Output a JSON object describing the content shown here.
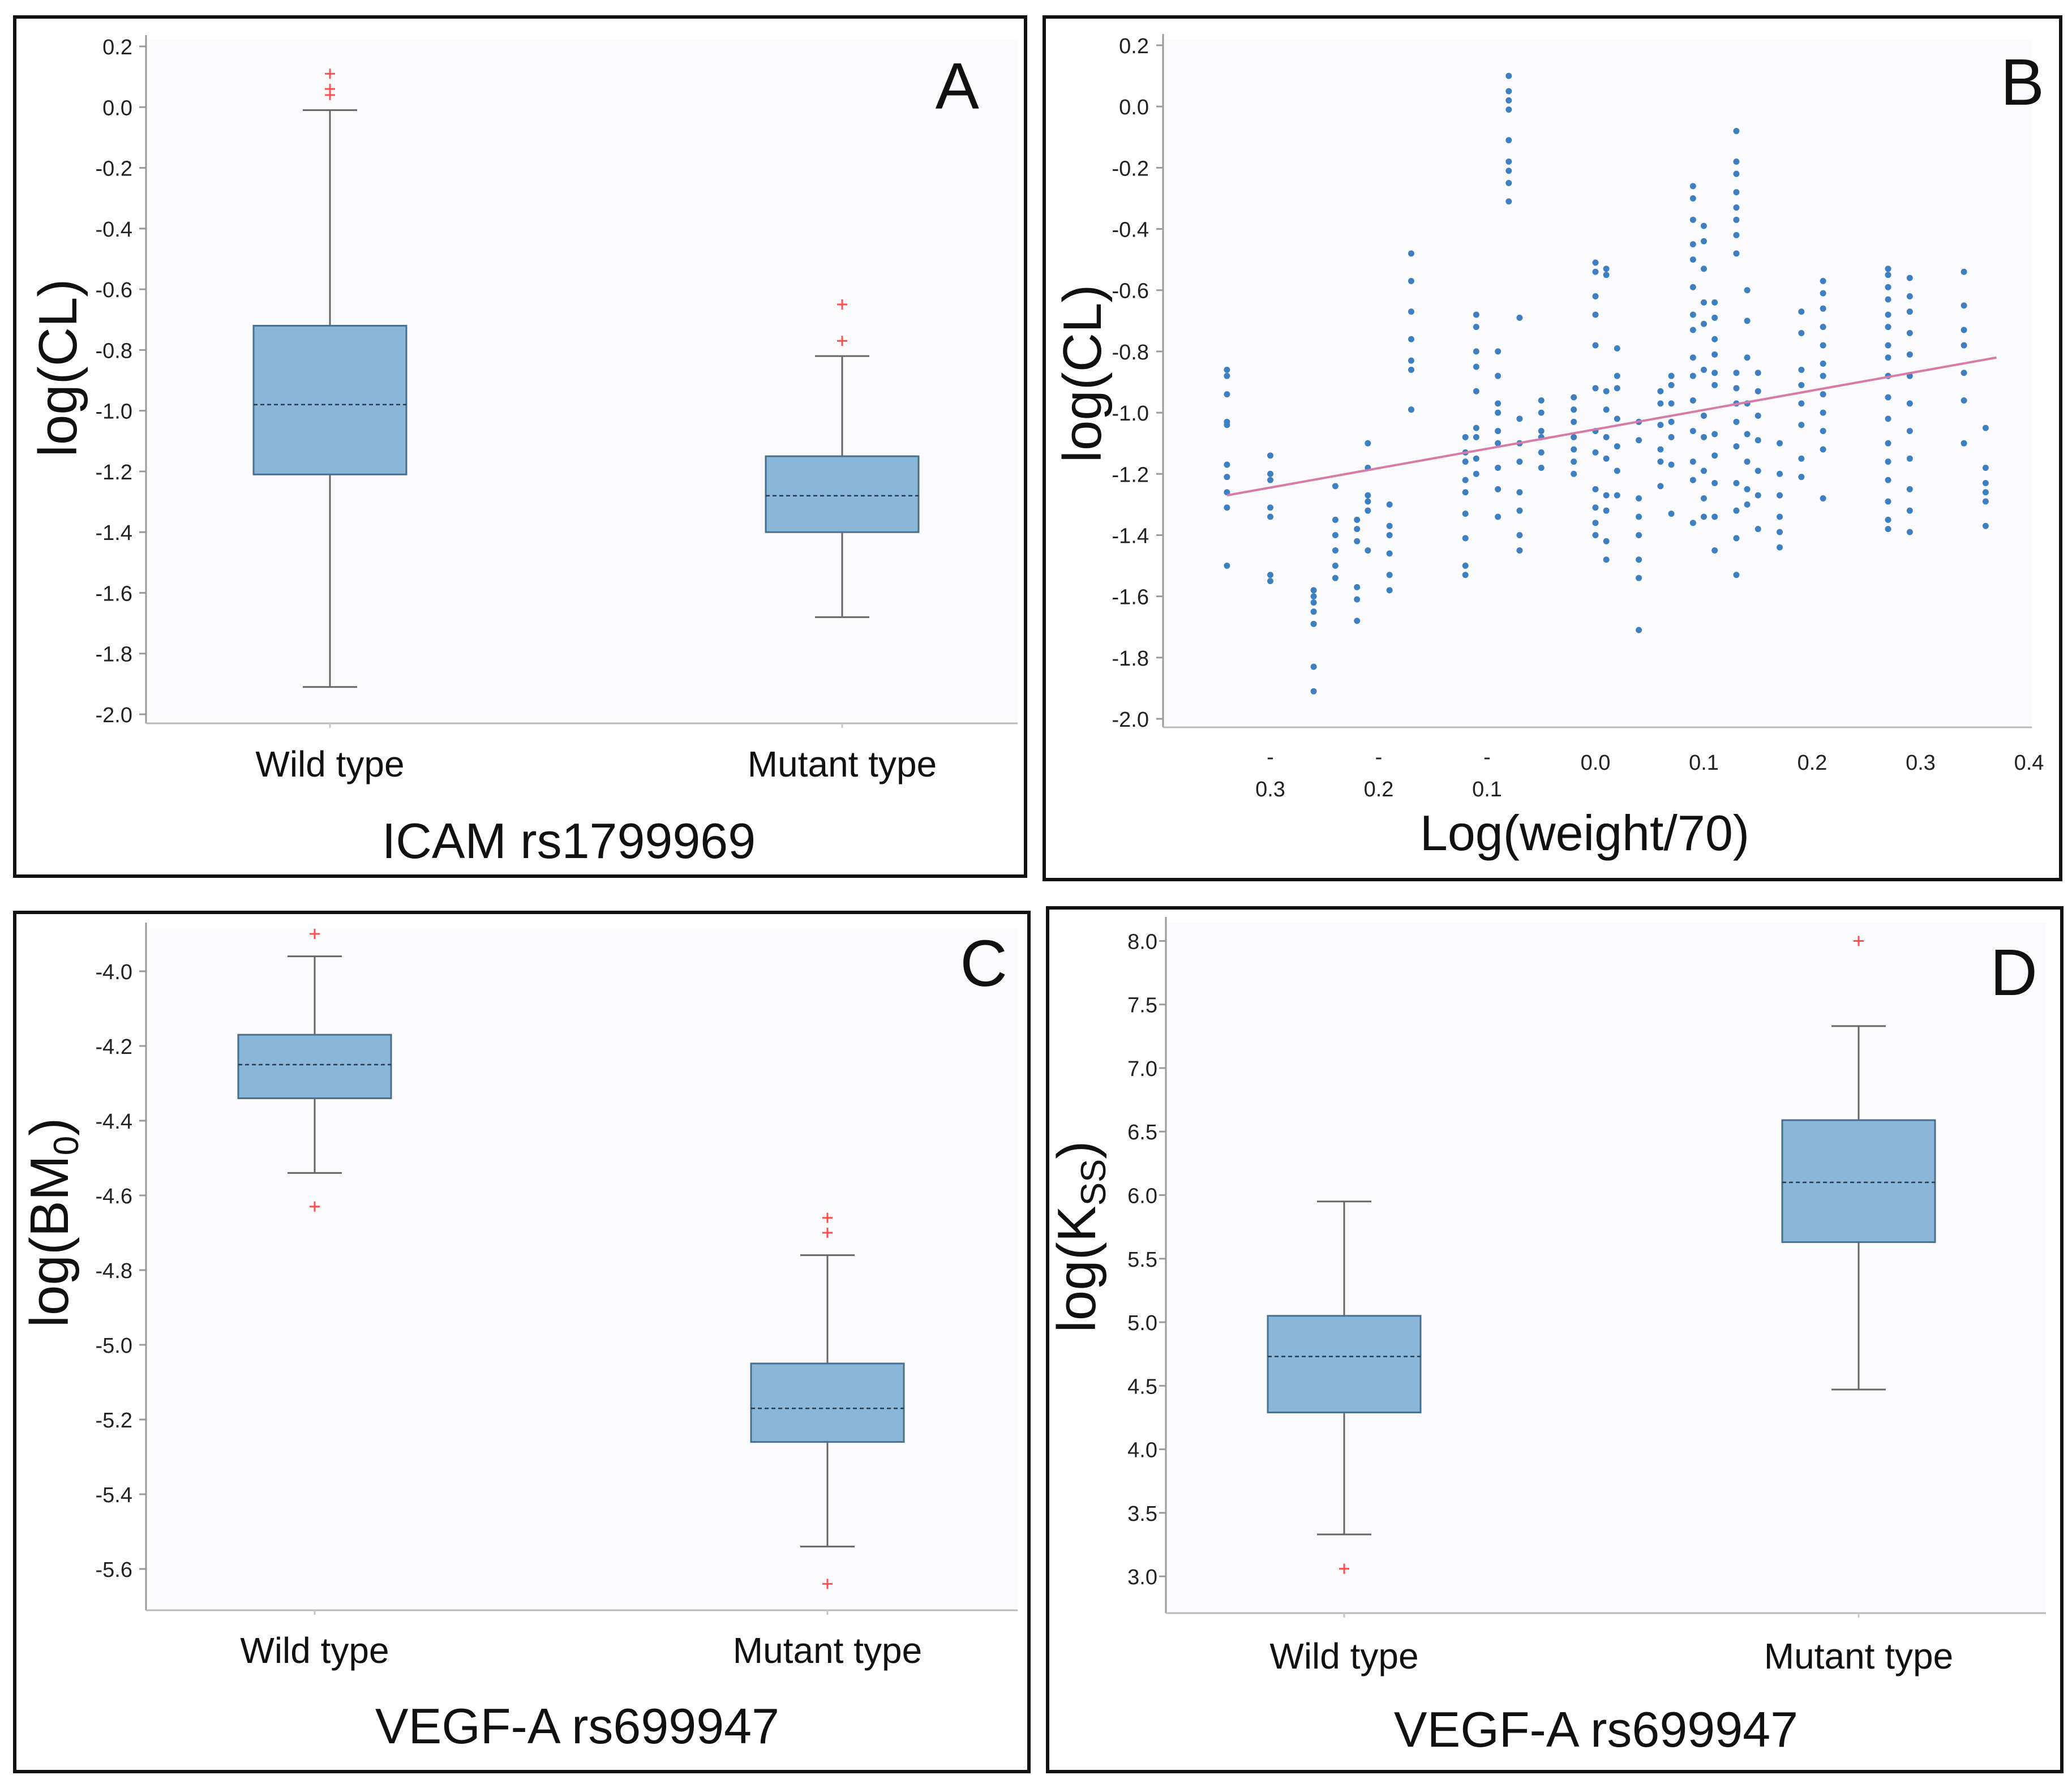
{
  "chart_data": [
    {
      "panel": "A",
      "type": "box",
      "letter": "A",
      "ylabel": "log(CL)",
      "xlabel": "ICAM rs1799969",
      "categories": [
        "Wild type",
        "Mutant type"
      ],
      "ylim": [
        -2.0,
        0.2
      ],
      "yticks": [
        "0.2",
        "0.0",
        "-0.2",
        "-0.4",
        "-0.6",
        "-0.8",
        "-1.0",
        "-1.2",
        "-1.4",
        "-1.6",
        "-1.8",
        "-2.0"
      ],
      "boxes": [
        {
          "category": "Wild type",
          "whisker_low": -1.91,
          "q1": -1.21,
          "median": -0.98,
          "q3": -0.72,
          "whisker_high": -0.01,
          "outliers": [
            0.11,
            0.06,
            0.04
          ]
        },
        {
          "category": "Mutant type",
          "whisker_low": -1.68,
          "q1": -1.4,
          "median": -1.28,
          "q3": -1.15,
          "whisker_high": -0.82,
          "outliers": [
            -0.65,
            -0.77
          ]
        }
      ],
      "colors": {
        "box_fill": "#8ab6d9",
        "box_stroke": "#4a6f8c",
        "whisker": "#666666",
        "outlier": "#ff5050",
        "frame": "#111111"
      }
    },
    {
      "panel": "B",
      "type": "scatter",
      "letter": "B",
      "ylabel": "log(CL)",
      "xlabel": "Log(weight/70)",
      "ylim": [
        -2.0,
        0.2
      ],
      "xlim": [
        -0.4,
        0.4
      ],
      "yticks": [
        "0.2",
        "0.0",
        "-0.2",
        "-0.4",
        "-0.6",
        "-0.8",
        "-1.0",
        "-1.2",
        "-1.4",
        "-1.6",
        "-1.8",
        "-2.0"
      ],
      "xticks": [
        {
          "v": -0.3,
          "dash": "-",
          "num": "0.3"
        },
        {
          "v": -0.2,
          "dash": "-",
          "num": "0.2"
        },
        {
          "v": -0.1,
          "dash": "-",
          "num": "0.1"
        },
        {
          "v": 0.0,
          "dash": "",
          "num": "0.0"
        },
        {
          "v": 0.1,
          "dash": "",
          "num": "0.1"
        },
        {
          "v": 0.2,
          "dash": "",
          "num": "0.2"
        },
        {
          "v": 0.3,
          "dash": "",
          "num": "0.3"
        },
        {
          "v": 0.4,
          "dash": "",
          "num": "0.4"
        }
      ],
      "regression": {
        "x": [
          -0.34,
          0.37
        ],
        "y": [
          -1.27,
          -0.82
        ]
      },
      "columns": [
        {
          "x": -0.34,
          "ys": [
            -0.86,
            -0.88,
            -0.94,
            -1.03,
            -1.04,
            -1.17,
            -1.21,
            -1.26,
            -1.31,
            -1.5
          ]
        },
        {
          "x": -0.3,
          "ys": [
            -1.14,
            -1.2,
            -1.22,
            -1.31,
            -1.34,
            -1.53,
            -1.55
          ]
        },
        {
          "x": -0.26,
          "ys": [
            -1.58,
            -1.6,
            -1.62,
            -1.65,
            -1.69,
            -1.83,
            -1.91
          ]
        },
        {
          "x": -0.24,
          "ys": [
            -1.24,
            -1.35,
            -1.4,
            -1.45,
            -1.5,
            -1.54
          ]
        },
        {
          "x": -0.22,
          "ys": [
            -1.35,
            -1.38,
            -1.42,
            -1.57,
            -1.61,
            -1.68
          ]
        },
        {
          "x": -0.21,
          "ys": [
            -1.1,
            -1.18,
            -1.27,
            -1.29,
            -1.32,
            -1.45
          ]
        },
        {
          "x": -0.19,
          "ys": [
            -1.3,
            -1.37,
            -1.4,
            -1.46,
            -1.53,
            -1.58
          ]
        },
        {
          "x": -0.17,
          "ys": [
            -0.48,
            -0.57,
            -0.67,
            -0.76,
            -0.83,
            -0.86,
            -0.99
          ]
        },
        {
          "x": -0.12,
          "ys": [
            -1.08,
            -1.13,
            -1.16,
            -1.22,
            -1.26,
            -1.33,
            -1.41,
            -1.5,
            -1.53
          ]
        },
        {
          "x": -0.11,
          "ys": [
            -0.68,
            -0.72,
            -0.8,
            -0.85,
            -0.93,
            -1.05,
            -1.08,
            -1.15,
            -1.2
          ]
        },
        {
          "x": -0.09,
          "ys": [
            -0.8,
            -0.88,
            -0.97,
            -1.0,
            -1.06,
            -1.1,
            -1.18,
            -1.25,
            -1.34
          ]
        },
        {
          "x": -0.08,
          "ys": [
            0.1,
            0.05,
            0.02,
            -0.01,
            -0.11,
            -0.18,
            -0.21,
            -0.25,
            -0.31
          ]
        },
        {
          "x": -0.07,
          "ys": [
            -0.69,
            -1.02,
            -1.1,
            -1.16,
            -1.26,
            -1.32,
            -1.4,
            -1.45
          ]
        },
        {
          "x": -0.05,
          "ys": [
            -0.96,
            -1.0,
            -1.06,
            -1.08,
            -1.13,
            -1.18
          ]
        },
        {
          "x": -0.02,
          "ys": [
            -0.95,
            -0.99,
            -1.03,
            -1.08,
            -1.12,
            -1.16,
            -1.2
          ]
        },
        {
          "x": 0.0,
          "ys": [
            -0.51,
            -0.54,
            -0.62,
            -0.68,
            -0.78,
            -0.92,
            -1.06,
            -1.13,
            -1.25,
            -1.31,
            -1.36,
            -1.4
          ]
        },
        {
          "x": 0.01,
          "ys": [
            -0.53,
            -0.55,
            -0.93,
            -0.99,
            -1.08,
            -1.15,
            -1.27,
            -1.32,
            -1.42,
            -1.48
          ]
        },
        {
          "x": 0.02,
          "ys": [
            -0.79,
            -0.88,
            -0.92,
            -1.02,
            -1.11,
            -1.19,
            -1.27
          ]
        },
        {
          "x": 0.04,
          "ys": [
            -1.03,
            -1.09,
            -1.28,
            -1.34,
            -1.4,
            -1.48,
            -1.54,
            -1.71
          ]
        },
        {
          "x": 0.06,
          "ys": [
            -0.93,
            -0.97,
            -1.04,
            -1.12,
            -1.16,
            -1.24
          ]
        },
        {
          "x": 0.07,
          "ys": [
            -0.88,
            -0.91,
            -0.97,
            -1.03,
            -1.08,
            -1.17,
            -1.33
          ]
        },
        {
          "x": 0.09,
          "ys": [
            -0.26,
            -0.3,
            -0.37,
            -0.45,
            -0.5,
            -0.59,
            -0.68,
            -0.73,
            -0.82,
            -0.88,
            -0.96,
            -1.06,
            -1.16,
            -1.22,
            -1.36
          ]
        },
        {
          "x": 0.1,
          "ys": [
            -0.39,
            -0.44,
            -0.53,
            -0.64,
            -0.71,
            -0.86,
            -1.01,
            -1.08,
            -1.19,
            -1.28,
            -1.34
          ]
        },
        {
          "x": 0.11,
          "ys": [
            -0.64,
            -0.69,
            -0.76,
            -0.81,
            -0.87,
            -0.91,
            -1.07,
            -1.14,
            -1.23,
            -1.34,
            -1.45
          ]
        },
        {
          "x": 0.13,
          "ys": [
            -0.08,
            -0.18,
            -0.22,
            -0.28,
            -0.33,
            -0.37,
            -0.42,
            -0.48,
            -0.87,
            -0.92,
            -0.97,
            -1.03,
            -1.11,
            -1.23,
            -1.32,
            -1.41,
            -1.53
          ]
        },
        {
          "x": 0.14,
          "ys": [
            -0.6,
            -0.7,
            -0.82,
            -0.97,
            -1.07,
            -1.16,
            -1.25,
            -1.3
          ]
        },
        {
          "x": 0.15,
          "ys": [
            -0.87,
            -0.93,
            -1.01,
            -1.09,
            -1.19,
            -1.27,
            -1.38
          ]
        },
        {
          "x": 0.17,
          "ys": [
            -1.1,
            -1.2,
            -1.27,
            -1.34,
            -1.39,
            -1.44
          ]
        },
        {
          "x": 0.19,
          "ys": [
            -0.67,
            -0.74,
            -0.86,
            -0.91,
            -0.97,
            -1.04,
            -1.15,
            -1.21
          ]
        },
        {
          "x": 0.21,
          "ys": [
            -0.57,
            -0.61,
            -0.66,
            -0.72,
            -0.78,
            -0.84,
            -0.88,
            -0.94,
            -1.0,
            -1.06,
            -1.12,
            -1.28
          ]
        },
        {
          "x": 0.27,
          "ys": [
            -0.53,
            -0.55,
            -0.59,
            -0.63,
            -0.68,
            -0.72,
            -0.78,
            -0.82,
            -0.88,
            -0.95,
            -1.02,
            -1.1,
            -1.16,
            -1.22,
            -1.29,
            -1.35,
            -1.38
          ]
        },
        {
          "x": 0.29,
          "ys": [
            -0.56,
            -0.62,
            -0.67,
            -0.74,
            -0.81,
            -0.88,
            -0.97,
            -1.06,
            -1.15,
            -1.25,
            -1.32,
            -1.39
          ]
        },
        {
          "x": 0.34,
          "ys": [
            -0.54,
            -0.65,
            -0.73,
            -0.78,
            -0.87,
            -0.96,
            -1.1
          ]
        },
        {
          "x": 0.36,
          "ys": [
            -1.05,
            -1.18,
            -1.23,
            -1.26,
            -1.29,
            -1.37
          ]
        }
      ],
      "colors": {
        "point": "#3d7fc0",
        "line": "#d87aa6",
        "frame": "#111111"
      }
    },
    {
      "panel": "C",
      "type": "box",
      "letter": "C",
      "ylabel_main": "log(BM",
      "ylabel_sub": "0",
      "ylabel_close": ")",
      "xlabel": "VEGF-A rs699947",
      "categories": [
        "Wild type",
        "Mutant type"
      ],
      "ylim": [
        -5.7,
        -3.9
      ],
      "yticks": [
        "-4.0",
        "-4.2",
        "-4.4",
        "-4.6",
        "-4.8",
        "-5.0",
        "-5.2",
        "-5.4",
        "-5.6"
      ],
      "boxes": [
        {
          "category": "Wild type",
          "whisker_low": -4.54,
          "q1": -4.34,
          "median": -4.25,
          "q3": -4.17,
          "whisker_high": -3.96,
          "outliers": [
            -3.9,
            -4.63
          ]
        },
        {
          "category": "Mutant type",
          "whisker_low": -5.54,
          "q1": -5.26,
          "median": -5.17,
          "q3": -5.05,
          "whisker_high": -4.76,
          "outliers": [
            -4.66,
            -4.7,
            -5.64
          ]
        }
      ],
      "colors": {
        "box_fill": "#8ab6d9",
        "box_stroke": "#4a6f8c",
        "whisker": "#666666",
        "outlier": "#ff5050",
        "frame": "#111111"
      }
    },
    {
      "panel": "D",
      "type": "box",
      "letter": "D",
      "ylabel_main": "log(K",
      "ylabel_sub": "SS",
      "ylabel_close": ")",
      "xlabel": "VEGF-A rs699947",
      "categories": [
        "Wild type",
        "Mutant type"
      ],
      "ylim": [
        2.8,
        8.1
      ],
      "yticks": [
        "8.0",
        "7.5",
        "7.0",
        "6.5",
        "6.0",
        "5.5",
        "5.0",
        "4.5",
        "4.0",
        "3.5",
        "3.0"
      ],
      "boxes": [
        {
          "category": "Wild type",
          "whisker_low": 3.33,
          "q1": 4.29,
          "median": 4.73,
          "q3": 5.05,
          "whisker_high": 5.95,
          "outliers": [
            3.06
          ]
        },
        {
          "category": "Mutant type",
          "whisker_low": 4.47,
          "q1": 5.63,
          "median": 6.1,
          "q3": 6.59,
          "whisker_high": 7.33,
          "outliers": [
            8.0
          ]
        }
      ],
      "colors": {
        "box_fill": "#8ab6d9",
        "box_stroke": "#4a6f8c",
        "whisker": "#666666",
        "outlier": "#ff5050",
        "frame": "#111111"
      }
    }
  ]
}
